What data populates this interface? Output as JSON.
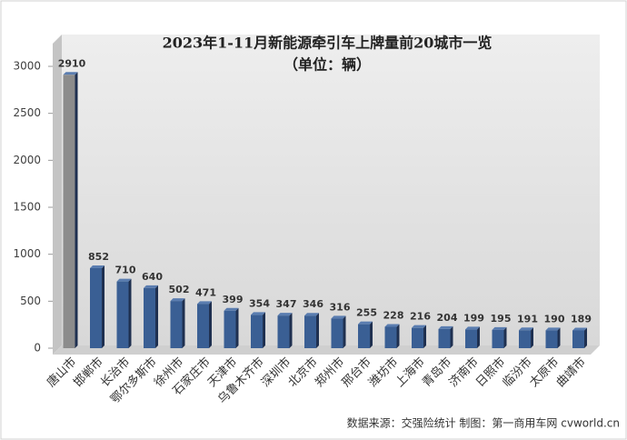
{
  "chart_data": {
    "type": "bar",
    "title": "2023年1-11月新能源牵引车上牌量前20城市一览",
    "subtitle": "（单位：辆）",
    "categories": [
      "唐山市",
      "邯郸市",
      "长治市",
      "鄂尔多斯市",
      "徐州市",
      "石家庄市",
      "天津市",
      "乌鲁木齐市",
      "深圳市",
      "北京市",
      "郑州市",
      "邢台市",
      "潍坊市",
      "上海市",
      "青岛市",
      "济南市",
      "日照市",
      "临汾市",
      "太原市",
      "曲靖市"
    ],
    "values": [
      2910,
      852,
      710,
      640,
      502,
      471,
      399,
      354,
      347,
      346,
      316,
      255,
      228,
      216,
      204,
      199,
      195,
      191,
      190,
      189
    ],
    "colors": [
      "#8c8c8c",
      "#3a5f94",
      "#3a5f94",
      "#3a5f94",
      "#3a5f94",
      "#3a5f94",
      "#3a5f94",
      "#3a5f94",
      "#3a5f94",
      "#3a5f94",
      "#3a5f94",
      "#3a5f94",
      "#3a5f94",
      "#3a5f94",
      "#3a5f94",
      "#3a5f94",
      "#3a5f94",
      "#3a5f94",
      "#3a5f94",
      "#3a5f94"
    ],
    "ylim": [
      0,
      3000
    ],
    "yticks": [
      0,
      500,
      1000,
      1500,
      2000,
      2500,
      3000
    ],
    "grid": false,
    "source": "数据来源：交强险统计 制图：第一商用车网 cvworld.cn"
  }
}
